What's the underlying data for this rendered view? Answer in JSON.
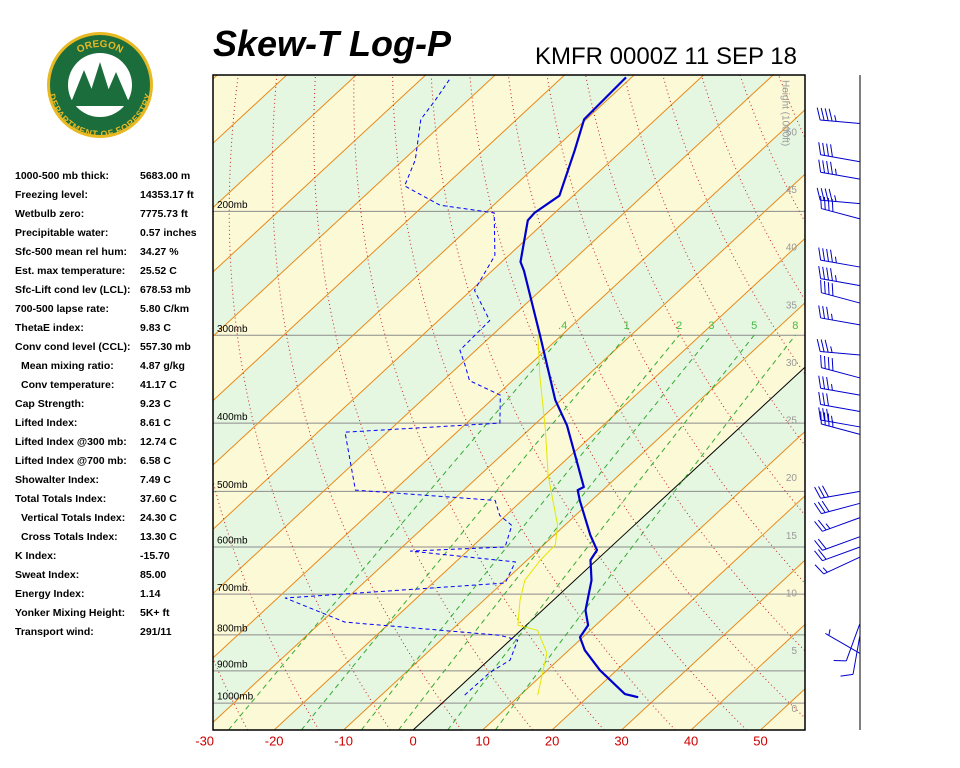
{
  "logo": {
    "top": "OREGON",
    "bottom": "DEPARTMENT OF FORESTRY"
  },
  "stats": [
    {
      "label": "1000-500 mb thick:",
      "value": "5683.00 m"
    },
    {
      "label": "Freezing level:",
      "value": "14353.17 ft"
    },
    {
      "label": "Wetbulb zero:",
      "value": "7775.73 ft"
    },
    {
      "label": "Precipitable water:",
      "value": "0.57 inches"
    },
    {
      "label": "Sfc-500 mean rel hum:",
      "value": "34.27 %"
    },
    {
      "label": "Est. max temperature:",
      "value": "25.52 C"
    },
    {
      "label": "Sfc-Lift cond lev (LCL):",
      "value": "678.53 mb"
    },
    {
      "label": "700-500 lapse rate:",
      "value": "5.80 C/km"
    },
    {
      "label": "ThetaE index:",
      "value": "9.83 C"
    },
    {
      "label": "Conv cond level (CCL):",
      "value": "557.30 mb"
    },
    {
      "label": "Mean mixing ratio:",
      "value": "4.87 g/kg"
    },
    {
      "label": "Conv temperature:",
      "value": "41.17 C"
    },
    {
      "label": "Cap Strength:",
      "value": "9.23 C"
    },
    {
      "label": "Lifted Index:",
      "value": "8.61 C"
    },
    {
      "label": "Lifted Index @300 mb:",
      "value": "12.74 C"
    },
    {
      "label": "Lifted Index @700 mb:",
      "value": "6.58 C"
    },
    {
      "label": "Showalter Index:",
      "value": "7.49 C"
    },
    {
      "label": "Total Totals Index:",
      "value": "37.60 C"
    },
    {
      "label": "Vertical Totals Index:",
      "value": "24.30 C"
    },
    {
      "label": "Cross Totals Index:",
      "value": "13.30 C"
    },
    {
      "label": "K Index:",
      "value": "-15.70"
    },
    {
      "label": "Sweat Index:",
      "value": "85.00"
    },
    {
      "label": "Energy Index:",
      "value": "1.14"
    },
    {
      "label": "Yonker Mixing Height:",
      "value": "5K+ ft"
    },
    {
      "label": "Transport wind:",
      "value": "291/11"
    }
  ],
  "chart_data": {
    "type": "skewt",
    "title": "Skew-T Log-P",
    "subtitle": "KMFR 0000Z 11 SEP 18",
    "y2label": "Height (1000ft)",
    "xlim": [
      -28.8,
      56.4
    ],
    "xticks": [
      -30,
      -20,
      -10,
      0,
      10,
      20,
      30,
      40,
      50
    ],
    "ylim": [
      1092,
      128
    ],
    "ylog": true,
    "yticks": [
      {
        "value": 1000,
        "label": "1000mb"
      },
      {
        "value": 900,
        "label": "900mb"
      },
      {
        "value": 800,
        "label": "800mb"
      },
      {
        "value": 700,
        "label": "700mb"
      },
      {
        "value": 600,
        "label": "600mb"
      },
      {
        "value": 500,
        "label": "500mb"
      },
      {
        "value": 400,
        "label": "400mb"
      },
      {
        "value": 300,
        "label": "300mb"
      },
      {
        "value": 200,
        "label": "200mb"
      }
    ],
    "y2lim": [
      -1.8,
      55
    ],
    "y2ticks": [
      0,
      5,
      10,
      15,
      20,
      25,
      30,
      35,
      40,
      45,
      50
    ],
    "mixing_ratios": [
      {
        "value": 0.4,
        "label": ".4"
      },
      1,
      2,
      3,
      5,
      8
    ],
    "series": [
      {
        "color": "#0000cc",
        "style": "thick",
        "pressure": [
          981,
          971,
          898,
          841,
          806,
          775,
          738,
          669,
          626,
          606,
          577,
          515,
          498,
          493,
          403,
          371,
          300,
          243,
          236,
          206,
          201,
          190,
          164,
          148,
          129
        ],
        "values": [
          27.3,
          24.9,
          17.6,
          12.3,
          9.6,
          8.9,
          6.2,
          2.4,
          -0.9,
          -1.5,
          -4.8,
          -11.7,
          -13.6,
          -13.2,
          -25.2,
          -30.8,
          -43.1,
          -55.4,
          -57.3,
          -62.7,
          -62.9,
          -62.0,
          -66.8,
          -70.3,
          -70.8
        ]
      },
      {
        "color": "#0000ff",
        "style": "dashed",
        "pressure": [
          974,
          904,
          869,
          814,
          801,
          767,
          709,
          675,
          630,
          608,
          600,
          559,
          541,
          515,
          498,
          412,
          400,
          365,
          348,
          331,
          315,
          286,
          259,
          231,
          201,
          196,
          184,
          169,
          148,
          139,
          129
        ],
        "values": [
          2.0,
          2.1,
          3.1,
          1.1,
          -2.2,
          -26.6,
          -38.9,
          -9.6,
          -11.4,
          -28.2,
          -15.2,
          -17.6,
          -20.9,
          -23.9,
          -45.6,
          -56.1,
          -35.2,
          -39.5,
          -46.2,
          -49.2,
          -52.3,
          -52.6,
          -59.5,
          -62.0,
          -68.7,
          -77.7,
          -85.8,
          -88.3,
          -93.8,
          -94.7,
          -96.0
        ]
      },
      {
        "color": "#e6e600",
        "style": "thin",
        "pressure": [
          974,
          849,
          788,
          775,
          714,
          669,
          626,
          596,
          559,
          474,
          409,
          342,
          300
        ],
        "values": [
          12.5,
          7.3,
          2.4,
          -1.2,
          -4.8,
          -7.2,
          -8.1,
          -8.3,
          -11.0,
          -20.2,
          -27.6,
          -36.9,
          -43.4
        ]
      }
    ],
    "winds": {
      "pressure": [
        150,
        170,
        180,
        195,
        205,
        240,
        255,
        270,
        290,
        320,
        345,
        365,
        385,
        405,
        415,
        500,
        520,
        545,
        580,
        600,
        620,
        770,
        800,
        850
      ],
      "direction": [
        275,
        280,
        280,
        275,
        285,
        280,
        280,
        285,
        280,
        275,
        285,
        280,
        280,
        280,
        285,
        260,
        255,
        250,
        250,
        250,
        245,
        200,
        190,
        300
      ],
      "speed": [
        45,
        40,
        45,
        45,
        40,
        45,
        45,
        40,
        35,
        35,
        40,
        35,
        30,
        35,
        35,
        30,
        30,
        25,
        20,
        20,
        15,
        10,
        10,
        5
      ]
    }
  }
}
